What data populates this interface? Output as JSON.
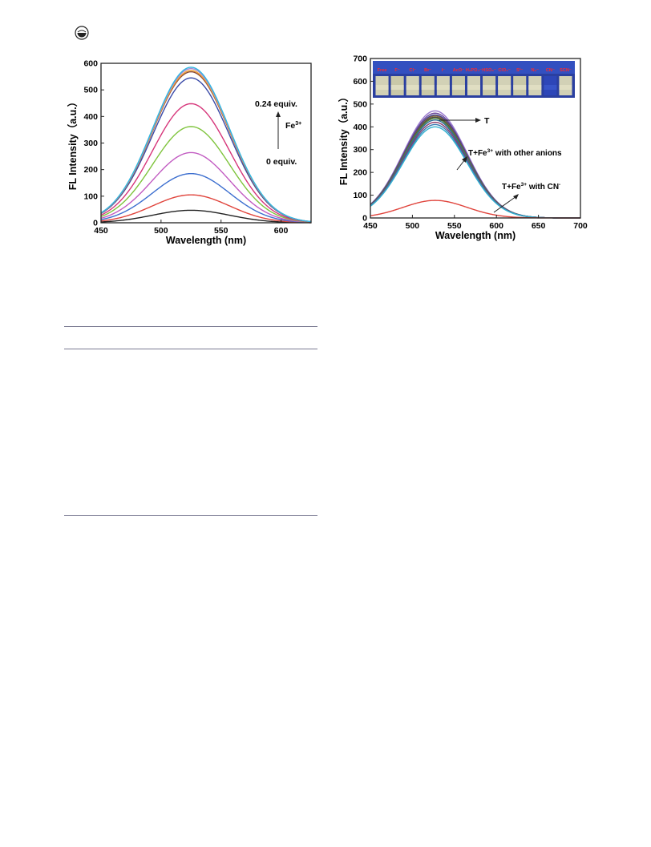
{
  "header": {
    "logo_icon": "publisher-logo-icon"
  },
  "chart_data": [
    {
      "type": "line",
      "xlabel": "Wavelength (nm)",
      "ylabel": "FL Intensity（a.u.）",
      "xlim": [
        450,
        625
      ],
      "ylim": [
        0,
        600
      ],
      "xticks": [
        450,
        500,
        550,
        600
      ],
      "yticks": [
        0,
        100,
        200,
        300,
        400,
        500,
        600
      ],
      "grid": false,
      "peak_x": 525,
      "peak_width_sigma": 32,
      "series": [
        {
          "peak": 47,
          "color": "#222222"
        },
        {
          "peak": 105,
          "color": "#e0443c"
        },
        {
          "peak": 185,
          "color": "#3d6fcf"
        },
        {
          "peak": 264,
          "color": "#c25cc2"
        },
        {
          "peak": 362,
          "color": "#7fc43d"
        },
        {
          "peak": 448,
          "color": "#d6357a"
        },
        {
          "peak": 545,
          "color": "#3a4aa8"
        },
        {
          "peak": 568,
          "color": "#8a4a3a"
        },
        {
          "peak": 573,
          "color": "#f0a030"
        },
        {
          "peak": 580,
          "color": "#a88ad8"
        },
        {
          "peak": 585,
          "color": "#30b8e0"
        }
      ],
      "annotations": {
        "top": "0.24 equiv.",
        "reagent": "Fe",
        "reagent_sup": "3+",
        "bottom": "0 equiv."
      }
    },
    {
      "type": "line",
      "xlabel": "Wavelength (nm)",
      "ylabel": "FL Intensity（a.u.）",
      "xlim": [
        450,
        700
      ],
      "ylim": [
        0,
        700
      ],
      "xticks": [
        450,
        500,
        550,
        600,
        650,
        700
      ],
      "yticks": [
        0,
        100,
        200,
        300,
        400,
        500,
        600,
        700
      ],
      "grid": false,
      "peak_x": 527,
      "peak_width_sigma": 38,
      "series": [
        {
          "peak": 470,
          "color": "#9a7ad0"
        },
        {
          "peak": 460,
          "color": "#6a4a9a"
        },
        {
          "peak": 452,
          "color": "#3a3a8a"
        },
        {
          "peak": 447,
          "color": "#8a6a3a"
        },
        {
          "peak": 442,
          "color": "#4a4a4a"
        },
        {
          "peak": 437,
          "color": "#5a8a3a"
        },
        {
          "peak": 430,
          "color": "#2a6a9a"
        },
        {
          "peak": 420,
          "color": "#8a3a6a"
        },
        {
          "peak": 410,
          "color": "#3a7ab0"
        },
        {
          "peak": 400,
          "color": "#30b0d0"
        },
        {
          "peak": 77,
          "color": "#e0443c"
        }
      ],
      "inset_labels": [
        "Free",
        "F⁻",
        "Cl⁻",
        "Br⁻",
        "I⁻",
        "AcO⁻",
        "H₂PO₄⁻",
        "HSO₄⁻",
        "ClO₄⁻",
        "S²⁻",
        "N₃⁻",
        "CN⁻",
        "SCN⁻"
      ],
      "annotations": {
        "t": "T",
        "other": "T+Fe",
        "other_sup": "3+",
        "other_tail": " with other anions",
        "cn": "T+Fe",
        "cn_sup": "3+",
        "cn_tail": " with CN",
        "cn_tail_sup": "-"
      }
    }
  ]
}
